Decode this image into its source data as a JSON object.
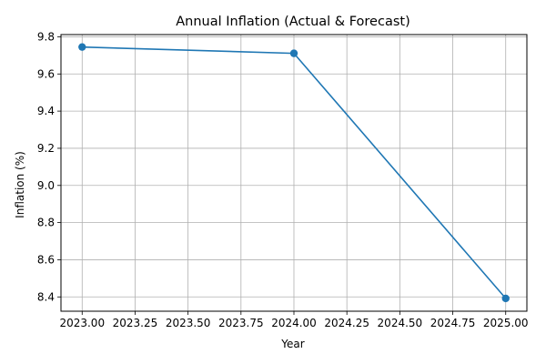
{
  "chart_data": {
    "type": "line",
    "title": "Annual Inflation (Actual & Forecast)",
    "xlabel": "Year",
    "ylabel": "Inflation (%)",
    "xlim": [
      2022.9,
      2025.1
    ],
    "ylim": [
      8.323,
      9.812
    ],
    "xticks": [
      2023.0,
      2023.25,
      2023.5,
      2023.75,
      2024.0,
      2024.25,
      2024.5,
      2024.75,
      2025.0
    ],
    "xtick_labels": [
      "2023.00",
      "2023.25",
      "2023.50",
      "2023.75",
      "2024.00",
      "2024.25",
      "2024.50",
      "2024.75",
      "2025.00"
    ],
    "yticks": [
      8.4,
      8.6,
      8.8,
      9.0,
      9.2,
      9.4,
      9.6,
      9.8
    ],
    "ytick_labels": [
      "8.4",
      "8.6",
      "8.8",
      "9.0",
      "9.2",
      "9.4",
      "9.6",
      "9.8"
    ],
    "grid": true,
    "series": [
      {
        "color": "#1f77b4",
        "marker": "circle",
        "x": [
          2023,
          2024,
          2025
        ],
        "y": [
          9.745,
          9.711,
          8.392
        ]
      }
    ]
  }
}
